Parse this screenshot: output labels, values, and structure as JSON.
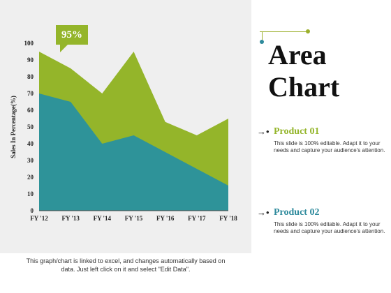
{
  "chart_data": {
    "type": "area",
    "categories": [
      "FY '12",
      "FY '13",
      "FY '14",
      "FY '15",
      "FY '16",
      "FY '17",
      "FY '18"
    ],
    "series": [
      {
        "name": "Product 01",
        "values": [
          95,
          85,
          70,
          95,
          53,
          45,
          55
        ],
        "color": "#94b52a"
      },
      {
        "name": "Product 02",
        "values": [
          70,
          65,
          40,
          45,
          35,
          25,
          15
        ],
        "color": "#2e9399"
      }
    ],
    "title": "",
    "xlabel": "",
    "ylabel": "Sales In Percentage(%)",
    "ylim": [
      0,
      100
    ],
    "yticks": [
      0,
      10,
      20,
      30,
      40,
      50,
      60,
      70,
      80,
      90,
      100
    ],
    "grid": false,
    "callout": "95%"
  },
  "heading": "Area Chart",
  "products": [
    {
      "name": "Product 01",
      "desc": "This slide is 100% editable. Adapt it to your needs and capture your audience's attention."
    },
    {
      "name": "Product 02",
      "desc": "This slide is 100% editable. Adapt it to your needs and capture your audience's attention."
    }
  ],
  "footnote": "This graph/chart is linked to excel, and changes automatically based on data. Just left click on it and select \"Edit Data\".",
  "colors": {
    "green": "#94b52a",
    "teal": "#2e8a9c",
    "panel": "#efefef"
  }
}
